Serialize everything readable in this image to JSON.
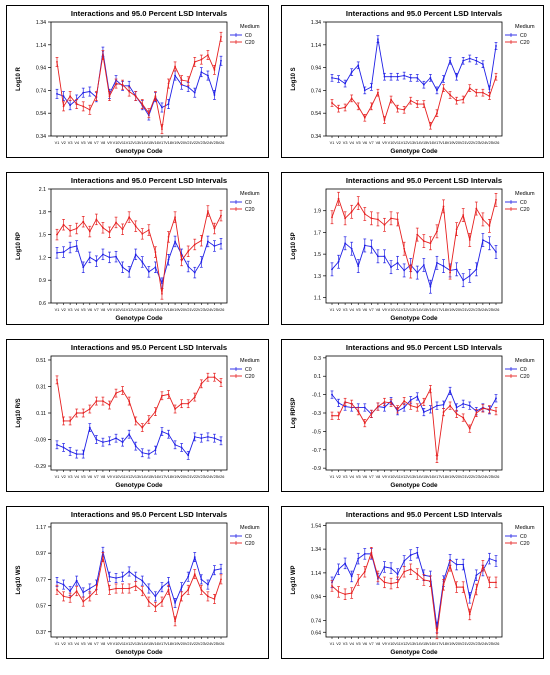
{
  "colors": {
    "c0": "#1f1fe6",
    "c20": "#e61f1f",
    "axis": "#000000"
  },
  "legend_title": "Medium",
  "chart_data": [
    {
      "type": "line",
      "title": "Interactions and 95.0 Percent LSD Intervals",
      "xlabel": "Genotype Code",
      "ylabel": "Log10 R",
      "yticks": [
        "0.34",
        "0.54",
        "0.74",
        "0.94",
        "1.14",
        "1.34"
      ],
      "ylim": [
        0.34,
        1.34
      ],
      "err": 0.04,
      "categories": [
        "V1",
        "V2",
        "V3",
        "V4",
        "V5",
        "V6",
        "V7",
        "V8",
        "V9",
        "V10",
        "V11",
        "V12",
        "V13",
        "V14",
        "V15",
        "V16",
        "V17",
        "V18",
        "V19",
        "V20",
        "V21",
        "V22",
        "V23",
        "V24",
        "V25",
        "V26"
      ],
      "series": [
        {
          "name": "C0",
          "values": [
            0.71,
            0.69,
            0.61,
            0.66,
            0.72,
            0.73,
            0.68,
            1.08,
            0.71,
            0.83,
            0.78,
            0.78,
            0.69,
            0.61,
            0.52,
            0.68,
            0.59,
            0.62,
            0.87,
            0.79,
            0.77,
            0.72,
            0.9,
            0.87,
            0.7,
            1.0
          ]
        },
        {
          "name": "C20",
          "values": [
            0.99,
            0.6,
            0.69,
            0.62,
            0.6,
            0.57,
            0.69,
            1.05,
            0.69,
            0.8,
            0.79,
            0.73,
            0.69,
            0.62,
            0.54,
            0.69,
            0.4,
            0.8,
            0.95,
            0.83,
            0.82,
            0.99,
            1.01,
            1.05,
            0.92,
            1.21
          ]
        }
      ]
    },
    {
      "type": "line",
      "title": "Interactions and 95.0 Percent LSD Intervals",
      "xlabel": "Genotype Code",
      "ylabel": "Log10 S",
      "yticks": [
        "0.34",
        "0.54",
        "0.74",
        "0.94",
        "1.14",
        "1.34"
      ],
      "ylim": [
        0.34,
        1.34
      ],
      "err": 0.03,
      "categories": [
        "V1",
        "V2",
        "V3",
        "V4",
        "V5",
        "V6",
        "V7",
        "V8",
        "V9",
        "V10",
        "V11",
        "V12",
        "V13",
        "V14",
        "V15",
        "V16",
        "V17",
        "V18",
        "V19",
        "V20",
        "V21",
        "V22",
        "V23",
        "V24",
        "V25",
        "V26"
      ],
      "series": [
        {
          "name": "C0",
          "values": [
            0.85,
            0.84,
            0.8,
            0.9,
            0.96,
            0.74,
            0.77,
            1.19,
            0.86,
            0.86,
            0.86,
            0.87,
            0.85,
            0.85,
            0.79,
            0.85,
            0.74,
            0.84,
            1.0,
            0.86,
            1.0,
            1.02,
            1.0,
            0.97,
            0.75,
            1.13
          ]
        },
        {
          "name": "C20",
          "values": [
            0.63,
            0.58,
            0.59,
            0.67,
            0.6,
            0.5,
            0.6,
            0.72,
            0.48,
            0.66,
            0.58,
            0.57,
            0.65,
            0.62,
            0.62,
            0.43,
            0.54,
            0.76,
            0.7,
            0.65,
            0.66,
            0.76,
            0.72,
            0.72,
            0.69,
            0.86
          ]
        }
      ]
    },
    {
      "type": "line",
      "title": "Interactions and 95.0 Percent LSD Intervals",
      "xlabel": "Genotype Code",
      "ylabel": "Log10 RP",
      "yticks": [
        "0.6",
        "0.9",
        "1.2",
        "1.5",
        "1.8",
        "2.1"
      ],
      "ylim": [
        0.6,
        2.1
      ],
      "err": 0.07,
      "categories": [
        "V1",
        "V2",
        "V3",
        "V4",
        "V5",
        "V6",
        "V7",
        "V8",
        "V9",
        "V10",
        "V11",
        "V12",
        "V13",
        "V14",
        "V15",
        "V16",
        "V17",
        "V18",
        "V19",
        "V20",
        "V21",
        "V22",
        "V23",
        "V24",
        "V25",
        "V26"
      ],
      "series": [
        {
          "name": "C0",
          "values": [
            1.26,
            1.27,
            1.33,
            1.35,
            1.07,
            1.2,
            1.15,
            1.24,
            1.2,
            1.21,
            1.07,
            1.01,
            1.24,
            1.14,
            1.01,
            1.07,
            0.86,
            1.17,
            1.41,
            1.24,
            1.08,
            1.0,
            1.14,
            1.41,
            1.35,
            1.38
          ]
        },
        {
          "name": "C20",
          "values": [
            1.5,
            1.63,
            1.55,
            1.58,
            1.67,
            1.54,
            1.7,
            1.59,
            1.53,
            1.66,
            1.57,
            1.73,
            1.61,
            1.51,
            1.56,
            1.27,
            0.72,
            1.47,
            1.73,
            1.16,
            1.28,
            1.37,
            1.42,
            1.81,
            1.58,
            1.75
          ]
        }
      ]
    },
    {
      "type": "line",
      "title": "Interactions and 95.0 Percent LSD Intervals",
      "xlabel": "Genotype Code",
      "ylabel": "Log10 SP",
      "yticks": [
        "1.1",
        "1.3",
        "1.5",
        "1.7",
        "1.9"
      ],
      "ylim": [
        1.05,
        2.1
      ],
      "err": 0.06,
      "categories": [
        "V1",
        "V2",
        "V3",
        "V4",
        "V5",
        "V6",
        "V7",
        "V8",
        "V9",
        "V10",
        "V11",
        "V12",
        "V13",
        "V14",
        "V15",
        "V16",
        "V17",
        "V18",
        "V19",
        "V20",
        "V21",
        "V22",
        "V23",
        "V24",
        "V25",
        "V26"
      ],
      "series": [
        {
          "name": "C0",
          "values": [
            1.36,
            1.43,
            1.6,
            1.55,
            1.39,
            1.58,
            1.57,
            1.48,
            1.48,
            1.38,
            1.42,
            1.35,
            1.4,
            1.33,
            1.4,
            1.2,
            1.42,
            1.39,
            1.35,
            1.36,
            1.26,
            1.3,
            1.36,
            1.63,
            1.6,
            1.52
          ]
        },
        {
          "name": "C20",
          "values": [
            1.84,
            2.01,
            1.83,
            1.89,
            1.97,
            1.87,
            1.83,
            1.82,
            1.77,
            1.83,
            1.82,
            1.55,
            1.34,
            1.68,
            1.62,
            1.6,
            1.71,
            1.94,
            1.33,
            1.73,
            1.86,
            1.63,
            1.92,
            1.82,
            1.76,
            2.0
          ]
        }
      ]
    },
    {
      "type": "line",
      "title": "Interactions and 95.0 Percent LSD Intervals",
      "xlabel": "Genotype Code",
      "ylabel": "Log10 R/S",
      "yticks": [
        "-0.29",
        "-0.09",
        "0.11",
        "0.31",
        "0.51"
      ],
      "ylim": [
        -0.32,
        0.54
      ],
      "err": 0.03,
      "categories": [
        "V1",
        "V2",
        "V3",
        "V4",
        "V5",
        "V6",
        "V7",
        "V8",
        "V9",
        "V10",
        "V11",
        "V12",
        "V13",
        "V14",
        "V15",
        "V16",
        "V17",
        "V18",
        "V19",
        "V20",
        "V21",
        "V22",
        "V23",
        "V24",
        "V25",
        "V26"
      ],
      "series": [
        {
          "name": "C0",
          "values": [
            -0.13,
            -0.15,
            -0.18,
            -0.2,
            -0.2,
            0.0,
            -0.09,
            -0.11,
            -0.1,
            -0.08,
            -0.11,
            -0.05,
            -0.14,
            -0.19,
            -0.2,
            -0.17,
            -0.03,
            -0.05,
            -0.13,
            -0.15,
            -0.21,
            -0.07,
            -0.08,
            -0.07,
            -0.08,
            -0.1
          ]
        },
        {
          "name": "C20",
          "values": [
            0.36,
            0.05,
            0.05,
            0.11,
            0.11,
            0.14,
            0.2,
            0.2,
            0.17,
            0.26,
            0.28,
            0.2,
            0.05,
            0.0,
            0.06,
            0.12,
            0.24,
            0.25,
            0.14,
            0.18,
            0.18,
            0.23,
            0.33,
            0.38,
            0.38,
            0.34
          ]
        }
      ]
    },
    {
      "type": "line",
      "title": "Interactions and 95.0 Percent LSD Intervals",
      "xlabel": "Genotype Code",
      "ylabel": "Log RP/SP",
      "yticks": [
        "-0.9",
        "-0.7",
        "-0.5",
        "-0.3",
        "-0.1",
        "0.1",
        "0.3"
      ],
      "ylim": [
        -0.92,
        0.32
      ],
      "err": 0.04,
      "categories": [
        "V1",
        "V2",
        "V3",
        "V4",
        "V5",
        "V6",
        "V7",
        "V8",
        "V9",
        "V10",
        "V11",
        "V12",
        "V13",
        "V14",
        "V15",
        "V16",
        "V17",
        "V18",
        "V19",
        "V20",
        "V21",
        "V22",
        "V23",
        "V24",
        "V25",
        "V26"
      ],
      "series": [
        {
          "name": "C0",
          "values": [
            -0.1,
            -0.19,
            -0.23,
            -0.24,
            -0.24,
            -0.24,
            -0.31,
            -0.23,
            -0.24,
            -0.17,
            -0.28,
            -0.24,
            -0.16,
            -0.12,
            -0.29,
            -0.26,
            -0.22,
            -0.21,
            -0.06,
            -0.24,
            -0.2,
            -0.22,
            -0.28,
            -0.24,
            -0.27,
            -0.14
          ]
        },
        {
          "name": "C20",
          "values": [
            -0.33,
            -0.33,
            -0.18,
            -0.2,
            -0.28,
            -0.41,
            -0.31,
            -0.23,
            -0.18,
            -0.19,
            -0.26,
            -0.17,
            -0.22,
            -0.24,
            -0.18,
            -0.04,
            -0.8,
            -0.29,
            -0.22,
            -0.31,
            -0.35,
            -0.47,
            -0.3,
            -0.25,
            -0.26,
            -0.28
          ]
        }
      ]
    },
    {
      "type": "line",
      "title": "Interactions and 95.0 Percent LSD Intervals",
      "xlabel": "Genotype Code",
      "ylabel": "Log10 WS",
      "yticks": [
        "0.37",
        "0.57",
        "0.77",
        "0.97",
        "1.17"
      ],
      "ylim": [
        0.33,
        1.2
      ],
      "err": 0.035,
      "categories": [
        "V1",
        "V2",
        "V3",
        "V4",
        "V5",
        "V6",
        "V7",
        "V8",
        "V9",
        "V10",
        "V11",
        "V12",
        "V13",
        "V14",
        "V15",
        "V16",
        "V17",
        "V18",
        "V19",
        "V20",
        "V21",
        "V22",
        "V23",
        "V24",
        "V25",
        "V26"
      ],
      "series": [
        {
          "name": "C0",
          "values": [
            0.75,
            0.73,
            0.68,
            0.76,
            0.67,
            0.7,
            0.73,
            0.98,
            0.79,
            0.78,
            0.79,
            0.83,
            0.79,
            0.76,
            0.7,
            0.64,
            0.71,
            0.75,
            0.59,
            0.71,
            0.79,
            0.94,
            0.77,
            0.73,
            0.84,
            0.85
          ]
        },
        {
          "name": "C20",
          "values": [
            0.69,
            0.64,
            0.63,
            0.68,
            0.6,
            0.64,
            0.69,
            0.94,
            0.69,
            0.7,
            0.7,
            0.7,
            0.72,
            0.68,
            0.6,
            0.56,
            0.6,
            0.69,
            0.45,
            0.64,
            0.69,
            0.81,
            0.69,
            0.64,
            0.62,
            0.77
          ]
        }
      ]
    },
    {
      "type": "line",
      "title": "Interactions and 95.0 Percent LSD Intervals",
      "xlabel": "Genotype Code",
      "ylabel": "Log10 WP",
      "yticks": [
        "0.64",
        "0.74",
        "0.94",
        "1.14",
        "1.34",
        "1.54"
      ],
      "ylim": [
        0.6,
        1.56
      ],
      "err": 0.045,
      "categories": [
        "V1",
        "V2",
        "V3",
        "V4",
        "V5",
        "V6",
        "V7",
        "V8",
        "V9",
        "V10",
        "V11",
        "V12",
        "V13",
        "V14",
        "V15",
        "V16",
        "V17",
        "V18",
        "V19",
        "V20",
        "V21",
        "V22",
        "V23",
        "V24",
        "V25",
        "V26"
      ],
      "series": [
        {
          "name": "C0",
          "values": [
            1.06,
            1.17,
            1.22,
            1.11,
            1.26,
            1.3,
            1.3,
            1.09,
            1.19,
            1.18,
            1.13,
            1.24,
            1.29,
            1.31,
            1.12,
            1.11,
            0.68,
            1.07,
            1.25,
            1.21,
            1.21,
            0.93,
            1.12,
            1.16,
            1.26,
            1.24
          ]
        },
        {
          "name": "C20",
          "values": [
            1.03,
            0.98,
            0.96,
            0.97,
            1.08,
            1.15,
            1.31,
            1.11,
            1.06,
            1.05,
            1.06,
            1.15,
            1.17,
            1.13,
            1.08,
            1.07,
            0.63,
            1.04,
            1.2,
            1.02,
            1.02,
            0.79,
            1.0,
            1.2,
            1.06,
            1.06
          ]
        }
      ]
    }
  ]
}
